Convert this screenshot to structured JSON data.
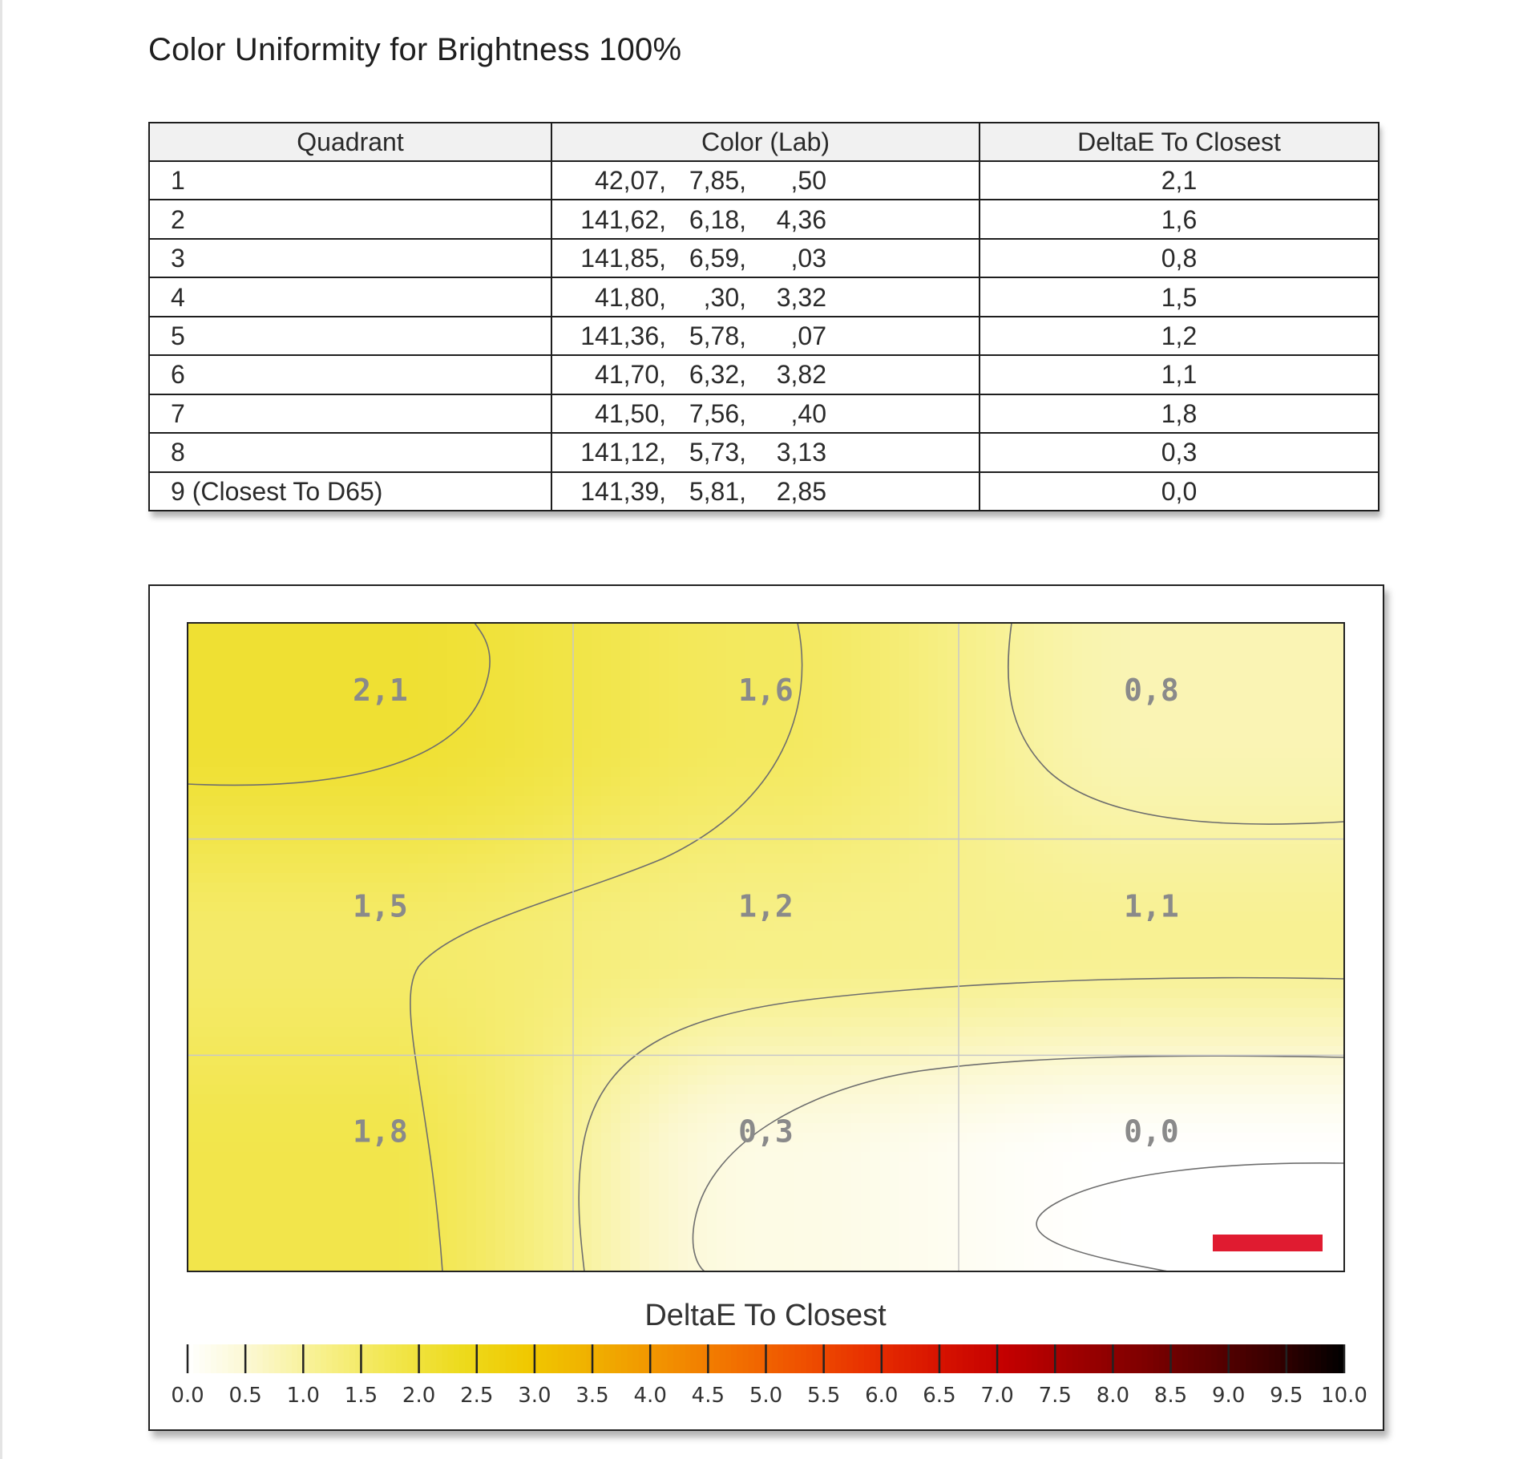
{
  "report": {
    "title": "Color Uniformity for Brightness 100%"
  },
  "table": {
    "headers": [
      "Quadrant",
      "Color (Lab)",
      "DeltaE To Closest"
    ],
    "rows": [
      {
        "quadrant": "1",
        "L": "42,07,",
        "a": "7,85,",
        "b": ",50",
        "deltaE": "2,1"
      },
      {
        "quadrant": "2",
        "L": "141,62,",
        "a": "6,18,",
        "b": "4,36",
        "deltaE": "1,6"
      },
      {
        "quadrant": "3",
        "L": "141,85,",
        "a": "6,59,",
        "b": ",03",
        "deltaE": "0,8"
      },
      {
        "quadrant": "4",
        "L": "41,80,",
        "a": ",30,",
        "b": "3,32",
        "deltaE": "1,5"
      },
      {
        "quadrant": "5",
        "L": "141,36,",
        "a": "5,78,",
        "b": ",07",
        "deltaE": "1,2"
      },
      {
        "quadrant": "6",
        "L": "41,70,",
        "a": "6,32,",
        "b": "3,82",
        "deltaE": "1,1"
      },
      {
        "quadrant": "7",
        "L": "41,50,",
        "a": "7,56,",
        "b": ",40",
        "deltaE": "1,8"
      },
      {
        "quadrant": "8",
        "L": "141,12,",
        "a": "5,73,",
        "b": "3,13",
        "deltaE": "0,3"
      },
      {
        "quadrant": "9 (Closest To D65)",
        "L": "141,39,",
        "a": "5,81,",
        "b": "2,85",
        "deltaE": "0,0"
      }
    ]
  },
  "chart_data": {
    "type": "heatmap",
    "rows": 3,
    "cols": 3,
    "cell_labels": [
      [
        "2,1",
        "1,6",
        "0,8"
      ],
      [
        "1,5",
        "1,2",
        "1,1"
      ],
      [
        "1,8",
        "0,3",
        "0,0"
      ]
    ],
    "values": [
      [
        2.1,
        1.6,
        0.8
      ],
      [
        1.5,
        1.2,
        1.1
      ],
      [
        1.8,
        0.3,
        0.0
      ]
    ],
    "contours": true,
    "grid": true,
    "marker_color": "#e01b30",
    "colorbar": {
      "title": "DeltaE To Closest",
      "min": 0.0,
      "max": 10.0,
      "ticks": [
        "0.0",
        "0.5",
        "1.0",
        "1.5",
        "2.0",
        "2.5",
        "3.0",
        "3.5",
        "4.0",
        "4.5",
        "5.0",
        "5.5",
        "6.0",
        "6.5",
        "7.0",
        "7.5",
        "8.0",
        "8.5",
        "9.0",
        "9.5",
        "10.0"
      ],
      "colors": [
        "#ffffff",
        "#fbf7cc",
        "#f7f08a",
        "#f2e64e",
        "#eddb1e",
        "#f0c800",
        "#f0ae00",
        "#f29100",
        "#f27200",
        "#ef5200",
        "#e83000",
        "#d81400",
        "#c40000",
        "#a00000",
        "#800000",
        "#5c0000",
        "#360000",
        "#000000"
      ]
    }
  }
}
